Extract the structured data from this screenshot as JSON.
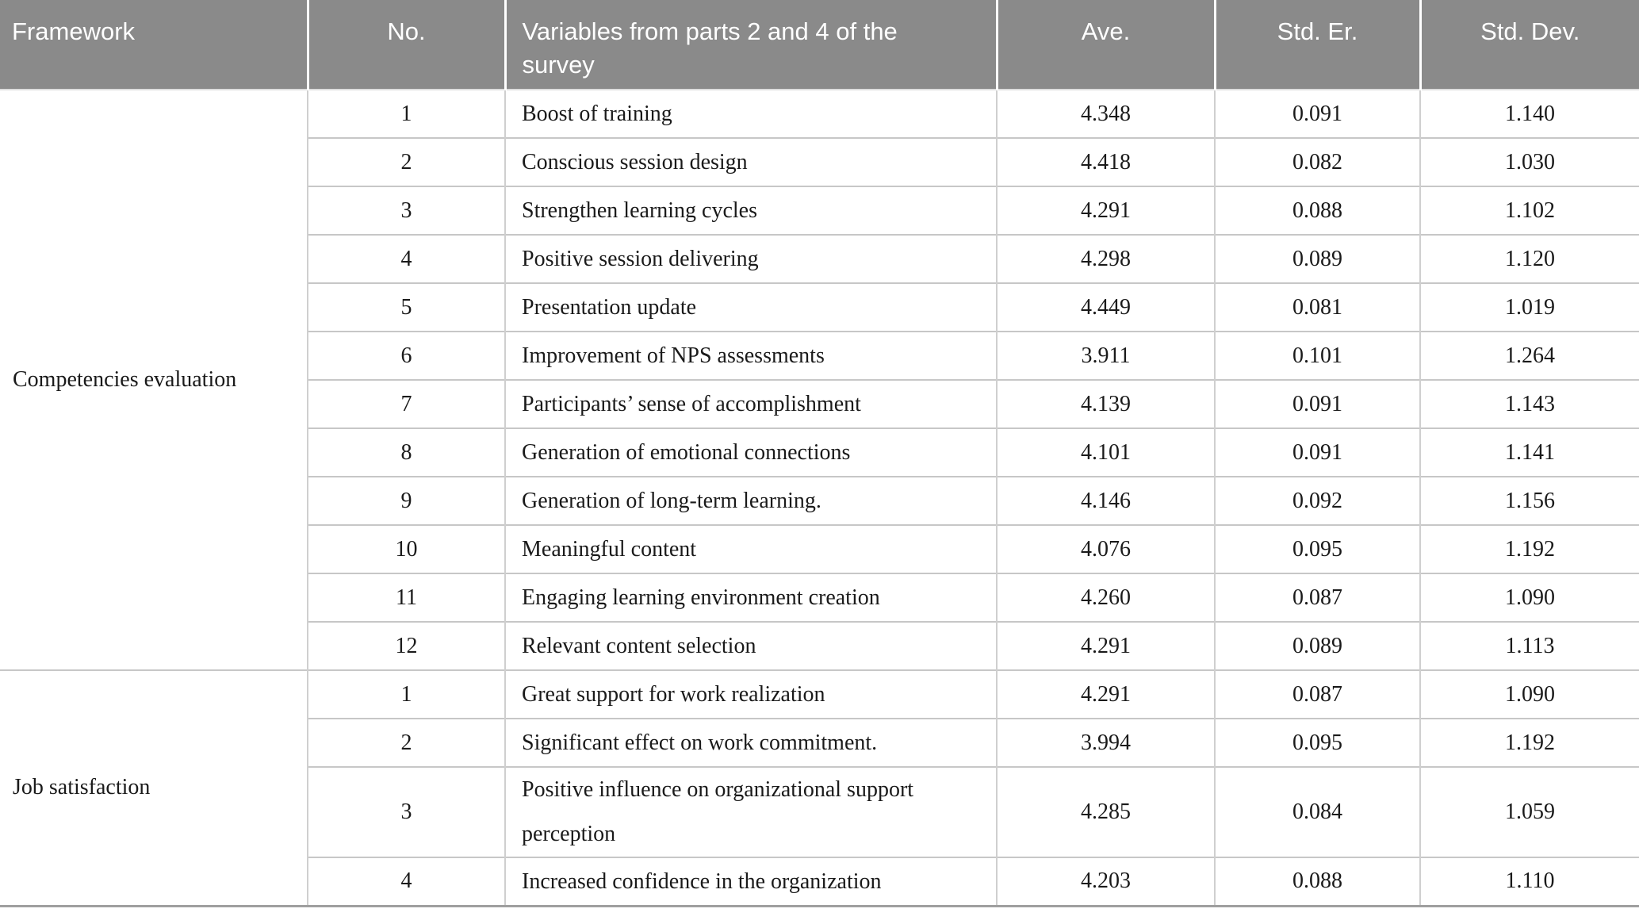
{
  "table": {
    "columns": [
      {
        "key": "framework",
        "label": "Framework"
      },
      {
        "key": "no",
        "label": "No."
      },
      {
        "key": "variable",
        "label": "Variables from parts 2 and 4 of the survey"
      },
      {
        "key": "ave",
        "label": "Ave."
      },
      {
        "key": "std_er",
        "label": "Std. Er."
      },
      {
        "key": "std_dev",
        "label": "Std. Dev."
      }
    ],
    "sections": [
      {
        "framework": "Competencies evaluation",
        "rows": [
          {
            "no": "1",
            "variable": "Boost of training",
            "ave": "4.348",
            "std_er": "0.091",
            "std_dev": "1.140"
          },
          {
            "no": "2",
            "variable": "Conscious session design",
            "ave": "4.418",
            "std_er": "0.082",
            "std_dev": "1.030"
          },
          {
            "no": "3",
            "variable": "Strengthen learning cycles",
            "ave": "4.291",
            "std_er": "0.088",
            "std_dev": "1.102"
          },
          {
            "no": "4",
            "variable": "Positive session delivering",
            "ave": "4.298",
            "std_er": "0.089",
            "std_dev": "1.120"
          },
          {
            "no": "5",
            "variable": "Presentation update",
            "ave": "4.449",
            "std_er": "0.081",
            "std_dev": "1.019"
          },
          {
            "no": "6",
            "variable": "Improvement of NPS assessments",
            "ave": "3.911",
            "std_er": "0.101",
            "std_dev": "1.264"
          },
          {
            "no": "7",
            "variable": "Participants’ sense of accomplishment",
            "ave": "4.139",
            "std_er": "0.091",
            "std_dev": "1.143"
          },
          {
            "no": "8",
            "variable": "Generation of emotional connections",
            "ave": "4.101",
            "std_er": "0.091",
            "std_dev": "1.141"
          },
          {
            "no": "9",
            "variable": "Generation of long-term learning.",
            "ave": "4.146",
            "std_er": "0.092",
            "std_dev": "1.156"
          },
          {
            "no": "10",
            "variable": "Meaningful content",
            "ave": "4.076",
            "std_er": "0.095",
            "std_dev": "1.192"
          },
          {
            "no": "11",
            "variable": "Engaging learning environment creation",
            "ave": "4.260",
            "std_er": "0.087",
            "std_dev": "1.090"
          },
          {
            "no": "12",
            "variable": "Relevant content selection",
            "ave": "4.291",
            "std_er": "0.089",
            "std_dev": "1.113"
          }
        ]
      },
      {
        "framework": "Job satisfaction",
        "rows": [
          {
            "no": "1",
            "variable": "Great support for work realization",
            "ave": "4.291",
            "std_er": "0.087",
            "std_dev": "1.090"
          },
          {
            "no": "2",
            "variable": "Significant effect on work commitment.",
            "ave": "3.994",
            "std_er": "0.095",
            "std_dev": "1.192"
          },
          {
            "no": "3",
            "variable": "Positive influence on organizational support perception",
            "ave": "4.285",
            "std_er": "0.084",
            "std_dev": "1.059",
            "tall": true
          },
          {
            "no": "4",
            "variable": "Increased confidence in the organization",
            "ave": "4.203",
            "std_er": "0.088",
            "std_dev": "1.110"
          }
        ]
      }
    ]
  },
  "colors": {
    "header_bg": "#8a8a8a",
    "header_text": "#ffffff",
    "body_text": "#1a1a1a",
    "row_border": "#c7c7c7",
    "column_border": "#cfcfcf",
    "bottom_border": "#9f9f9f"
  }
}
